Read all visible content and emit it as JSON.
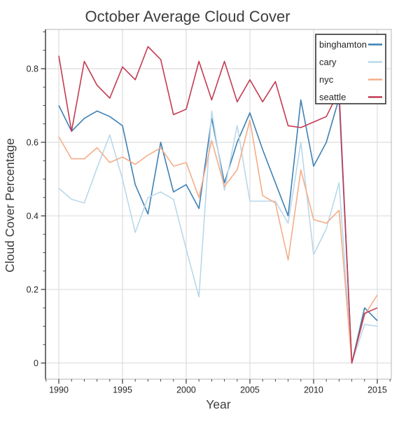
{
  "chart_data": {
    "type": "line",
    "title": "October Average Cloud Cover",
    "xlabel": "Year",
    "ylabel": "Cloud Cover Percentage",
    "x": [
      1990,
      1991,
      1992,
      1993,
      1994,
      1995,
      1996,
      1997,
      1998,
      1999,
      2000,
      2001,
      2002,
      2003,
      2004,
      2005,
      2006,
      2007,
      2008,
      2009,
      2010,
      2011,
      2012,
      2013,
      2014,
      2015
    ],
    "series": [
      {
        "name": "binghamton",
        "color": "#3f80b4",
        "values": [
          0.7,
          0.63,
          0.665,
          0.685,
          0.67,
          0.645,
          0.485,
          0.405,
          0.6,
          0.465,
          0.485,
          0.42,
          0.665,
          0.49,
          0.6,
          0.68,
          0.58,
          0.49,
          0.4,
          0.715,
          0.535,
          0.6,
          0.72,
          0.0,
          0.15,
          0.115
        ]
      },
      {
        "name": "cary",
        "color": "#b9d8ea",
        "values": [
          0.475,
          0.445,
          0.435,
          0.53,
          0.62,
          0.5,
          0.355,
          0.45,
          0.465,
          0.445,
          0.31,
          0.18,
          0.685,
          0.47,
          0.645,
          0.44,
          0.44,
          0.44,
          0.38,
          0.6,
          0.295,
          0.365,
          0.49,
          0.0,
          0.105,
          0.1
        ]
      },
      {
        "name": "nyc",
        "color": "#f4ad87",
        "values": [
          0.615,
          0.555,
          0.555,
          0.585,
          0.545,
          0.56,
          0.54,
          0.565,
          0.585,
          0.535,
          0.545,
          0.45,
          0.605,
          0.48,
          0.525,
          0.66,
          0.455,
          0.435,
          0.28,
          0.525,
          0.39,
          0.38,
          0.415,
          0.0,
          0.13,
          0.185
        ]
      },
      {
        "name": "seattle",
        "color": "#c33b53",
        "values": [
          0.835,
          0.63,
          0.82,
          0.755,
          0.72,
          0.805,
          0.77,
          0.86,
          0.825,
          0.675,
          0.69,
          0.82,
          0.715,
          0.82,
          0.71,
          0.77,
          0.71,
          0.765,
          0.645,
          0.64,
          0.655,
          0.67,
          0.74,
          0.0,
          0.135,
          0.15
        ]
      }
    ],
    "xticks": [
      1990,
      1995,
      2000,
      2005,
      2010,
      2015
    ],
    "xtick_labels": [
      "1990",
      "1995",
      "2000",
      "2005",
      "2010",
      "2015"
    ],
    "yticks": [
      0,
      0.2,
      0.4,
      0.6,
      0.8
    ],
    "ytick_labels": [
      "0",
      "0.2",
      "0.4",
      "0.6",
      "0.8"
    ],
    "x_minor_step": 1,
    "y_minor_step": 0.05,
    "xlim": [
      1988.956,
      2016.099
    ],
    "ylim": [
      -0.0438,
      0.9067
    ],
    "grid": true,
    "legend_position": "top-right",
    "legend_labels": [
      "binghamton",
      "cary",
      "nyc",
      "seattle"
    ]
  },
  "style": {
    "grid_color": "#d9d9d9",
    "frame_color": "#c6c6c6",
    "spine_color": "#2f2f2f",
    "tick_color": "#333333",
    "legend_border_color": "#4a4a4a",
    "legend_bg": "#ffffff",
    "plot_bg": "#ffffff"
  }
}
